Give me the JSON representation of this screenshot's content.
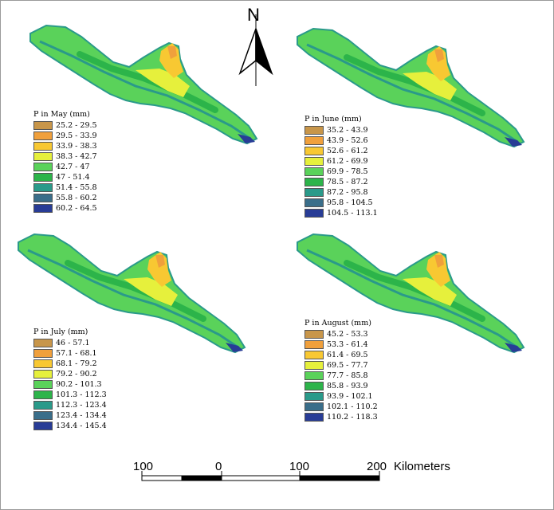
{
  "north_arrow": {
    "label": "N"
  },
  "maps": [
    {
      "legend_title": "P in May (mm)",
      "classes": [
        {
          "label": "25.2 - 29.5",
          "color": "#c8964a"
        },
        {
          "label": "29.5 - 33.9",
          "color": "#f0a03c"
        },
        {
          "label": "33.9 - 38.3",
          "color": "#f8c832"
        },
        {
          "label": "38.3 - 42.7",
          "color": "#e6f03c"
        },
        {
          "label": "42.7 - 47",
          "color": "#5ad25a"
        },
        {
          "label": "47 - 51.4",
          "color": "#2cb44a"
        },
        {
          "label": "51.4 - 55.8",
          "color": "#2a9a8a"
        },
        {
          "label": "55.8 - 60.2",
          "color": "#3a6e8a"
        },
        {
          "label": "60.2 - 64.5",
          "color": "#283c96"
        }
      ]
    },
    {
      "legend_title": "P in June (mm)",
      "classes": [
        {
          "label": "35.2 - 43.9",
          "color": "#c8964a"
        },
        {
          "label": "43.9 - 52.6",
          "color": "#f0a03c"
        },
        {
          "label": "52.6 - 61.2",
          "color": "#f8c832"
        },
        {
          "label": "61.2 - 69.9",
          "color": "#e6f03c"
        },
        {
          "label": "69.9 - 78.5",
          "color": "#5ad25a"
        },
        {
          "label": "78.5 - 87.2",
          "color": "#2cb44a"
        },
        {
          "label": "87.2 - 95.8",
          "color": "#2a9a8a"
        },
        {
          "label": "95.8 - 104.5",
          "color": "#3a6e8a"
        },
        {
          "label": "104.5 - 113.1",
          "color": "#283c96"
        }
      ]
    },
    {
      "legend_title": "P in July (mm)",
      "classes": [
        {
          "label": "46 - 57.1",
          "color": "#c8964a"
        },
        {
          "label": "57.1 - 68.1",
          "color": "#f0a03c"
        },
        {
          "label": "68.1 - 79.2",
          "color": "#f8c832"
        },
        {
          "label": "79.2 - 90.2",
          "color": "#e6f03c"
        },
        {
          "label": "90.2 - 101.3",
          "color": "#5ad25a"
        },
        {
          "label": "101.3 - 112.3",
          "color": "#2cb44a"
        },
        {
          "label": "112.3 - 123.4",
          "color": "#2a9a8a"
        },
        {
          "label": "123.4 - 134.4",
          "color": "#3a6e8a"
        },
        {
          "label": "134.4 - 145.4",
          "color": "#283c96"
        }
      ]
    },
    {
      "legend_title": "P in August (mm)",
      "classes": [
        {
          "label": "45.2 - 53.3",
          "color": "#c8964a"
        },
        {
          "label": "53.3 - 61.4",
          "color": "#f0a03c"
        },
        {
          "label": "61.4 - 69.5",
          "color": "#f8c832"
        },
        {
          "label": "69.5 - 77.7",
          "color": "#e6f03c"
        },
        {
          "label": "77.7 - 85.8",
          "color": "#5ad25a"
        },
        {
          "label": "85.8 - 93.9",
          "color": "#2cb44a"
        },
        {
          "label": "93.9 - 102.1",
          "color": "#2a9a8a"
        },
        {
          "label": "102.1 - 110.2",
          "color": "#3a6e8a"
        },
        {
          "label": "110.2 - 118.3",
          "color": "#283c96"
        }
      ]
    }
  ],
  "scale_bar": {
    "ticks": [
      "100",
      "0",
      "100",
      "200"
    ],
    "unit": "Kilometers"
  }
}
